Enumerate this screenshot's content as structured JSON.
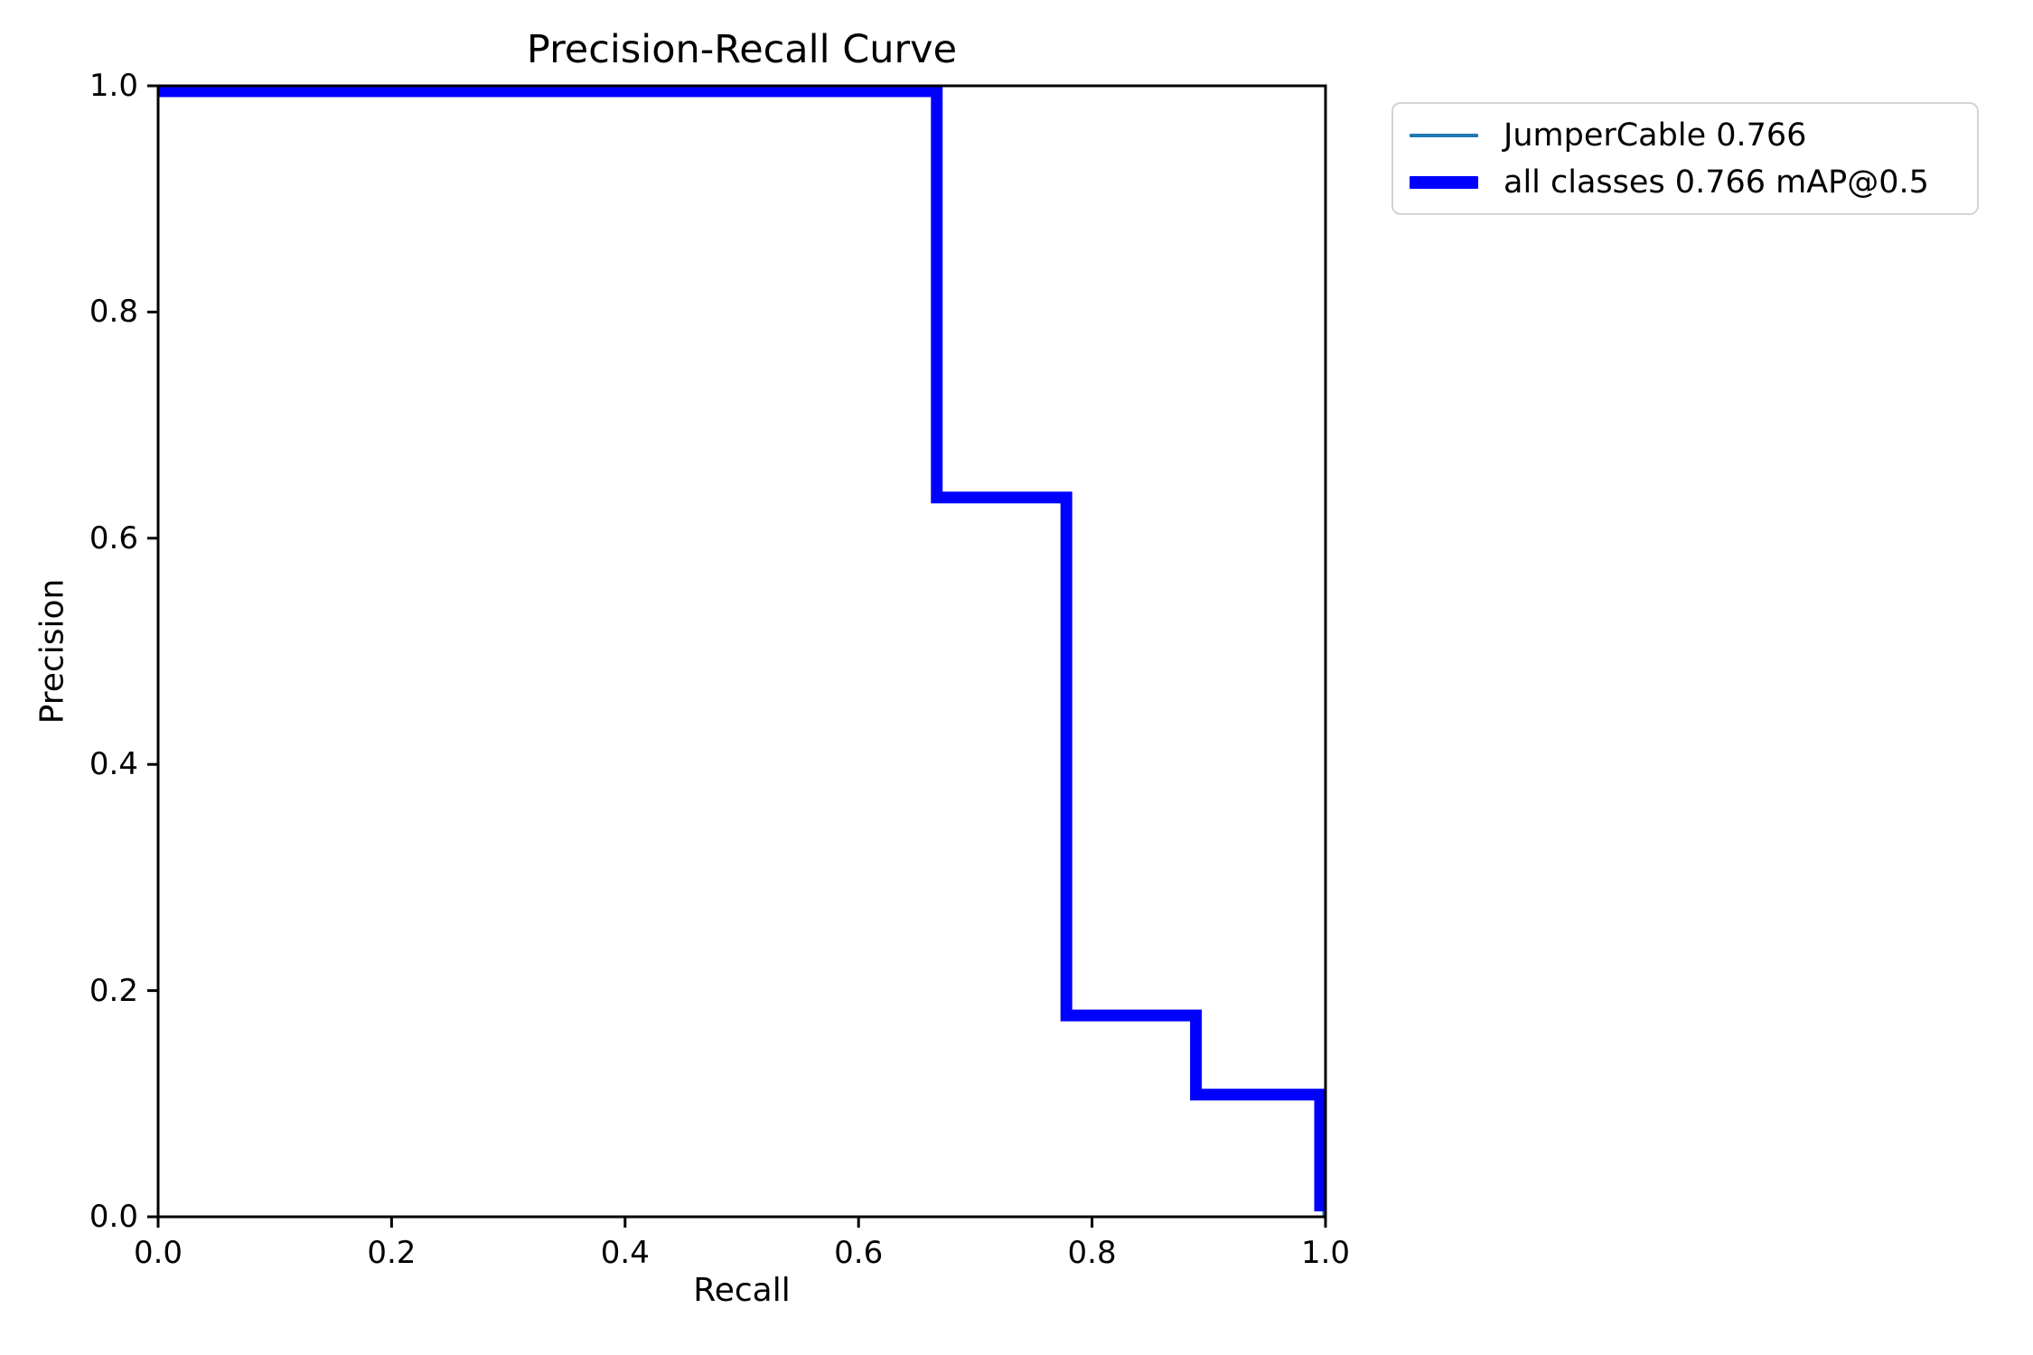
{
  "chart_data": {
    "type": "line",
    "subtype": "step-precision-recall",
    "title": "Precision-Recall Curve",
    "xlabel": "Recall",
    "ylabel": "Precision",
    "xlim": [
      0.0,
      1.0
    ],
    "ylim": [
      0.0,
      1.0
    ],
    "x_ticks": [
      "0.0",
      "0.2",
      "0.4",
      "0.6",
      "0.8",
      "1.0"
    ],
    "y_ticks": [
      "0.0",
      "0.2",
      "0.4",
      "0.6",
      "0.8",
      "1.0"
    ],
    "grid": false,
    "background_color": "#ffffff",
    "axis_color": "#000000",
    "series": [
      {
        "name": "JumperCable 0.766",
        "color": "#1f77b4",
        "line_width": 4,
        "points": [
          [
            0.0,
            1.0
          ],
          [
            0.667,
            1.0
          ],
          [
            0.667,
            0.636
          ],
          [
            0.778,
            0.636
          ],
          [
            0.778,
            0.178
          ],
          [
            0.889,
            0.178
          ],
          [
            0.889,
            0.108
          ],
          [
            1.0,
            0.108
          ],
          [
            1.0,
            0.0
          ]
        ]
      },
      {
        "name": "all classes 0.766 mAP@0.5",
        "color": "#0000ff",
        "line_width": 13,
        "points": [
          [
            0.0,
            1.0
          ],
          [
            0.667,
            1.0
          ],
          [
            0.667,
            0.636
          ],
          [
            0.778,
            0.636
          ],
          [
            0.778,
            0.178
          ],
          [
            0.889,
            0.178
          ],
          [
            0.889,
            0.108
          ],
          [
            1.0,
            0.108
          ],
          [
            1.0,
            0.0
          ]
        ]
      }
    ],
    "legend": {
      "position": "upper-right-outside",
      "entries": [
        {
          "label": "JumperCable 0.766",
          "color": "#1f77b4",
          "swatch_height": 4
        },
        {
          "label": "all classes 0.766 mAP@0.5",
          "color": "#0000ff",
          "swatch_height": 14
        }
      ]
    }
  }
}
